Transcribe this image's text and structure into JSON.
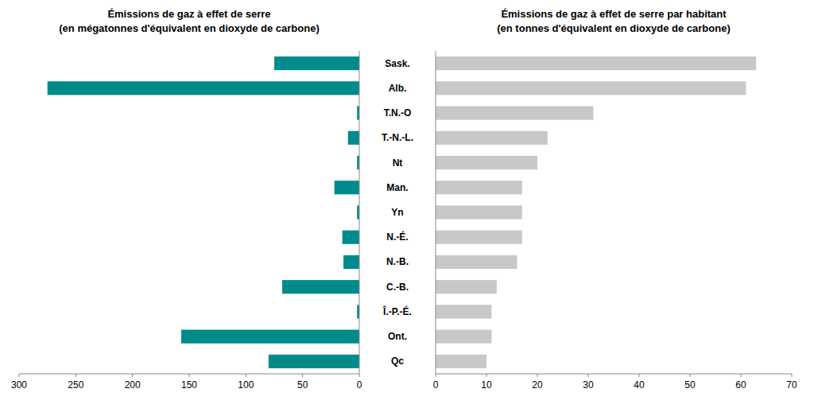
{
  "chart_data": [
    {
      "type": "bar",
      "orientation": "horizontal",
      "title": "Émissions de gaz à effet de serre",
      "subtitle": "(en mégatonnes d'équivalent en dioxyde de carbone)",
      "categories": [
        "Sask.",
        "Alb.",
        "T.N.-O",
        "T.-N.-L.",
        "Nt",
        "Man.",
        "Yn",
        "N.-É.",
        "N.-B.",
        "C.-B.",
        "Î.-P.-É.",
        "Ont.",
        "Qc"
      ],
      "values": [
        75,
        275,
        2,
        10,
        2,
        22,
        2,
        15,
        14,
        68,
        2,
        157,
        80
      ],
      "color": "#008B8B",
      "xlim": [
        300,
        0
      ],
      "xticks": [
        300,
        250,
        200,
        150,
        100,
        50,
        0
      ]
    },
    {
      "type": "bar",
      "orientation": "horizontal",
      "title": "Émissions de gaz à effet de serre par habitant",
      "subtitle": "(en tonnes d'équivalent en dioxyde de carbone)",
      "categories": [
        "Sask.",
        "Alb.",
        "T.N.-O",
        "T.-N.-L.",
        "Nt",
        "Man.",
        "Yn",
        "N.-É.",
        "N.-B.",
        "C.-B.",
        "Î.-P.-É.",
        "Ont.",
        "Qc"
      ],
      "values": [
        63,
        61,
        31,
        22,
        20,
        17,
        17,
        17,
        16,
        12,
        11,
        11,
        10
      ],
      "color": "#C8C8C8",
      "xlim": [
        0,
        70
      ],
      "xticks": [
        0,
        10,
        20,
        30,
        40,
        50,
        60,
        70
      ]
    }
  ]
}
